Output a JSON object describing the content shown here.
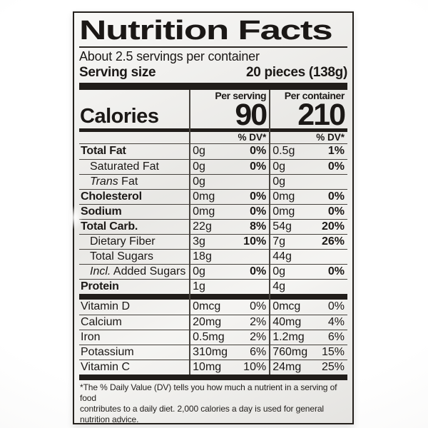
{
  "colors": {
    "label_bg": "#f1f0ed",
    "bar": "#211d1a",
    "text": "#1b1816",
    "hairline": "#46423d",
    "hairline_strong": "#2c2824"
  },
  "label": {
    "title": "Nutrition Facts",
    "servings_per_container": "About 2.5 servings per container",
    "serving_size_label": "Serving size",
    "serving_size_value": "20 pieces (138g)",
    "calories_label": "Calories",
    "per_serving_header": "Per serving",
    "per_container_header": "Per container",
    "calories_per_serving": "90",
    "calories_per_container": "210",
    "dv_header": "% DV*",
    "footnote_line1": "*The % Daily Value (DV) tells you how much a nutrient in a serving of food",
    "footnote_line2": "contributes to a daily diet. 2,000 calories a day is used for general nutrition advice."
  },
  "table": {
    "main_rows": [
      {
        "name": "Total Fat",
        "style": "bold",
        "amt1": "0g",
        "dv1": "0%",
        "amt2": "0.5g",
        "dv2": "1%"
      },
      {
        "name": "Saturated Fat",
        "style": "ind",
        "amt1": "0g",
        "dv1": "0%",
        "amt2": "0g",
        "dv2": "0%"
      },
      {
        "name": "Trans Fat",
        "style": "ind",
        "italic_prefix": "Trans",
        "amt1": "0g",
        "dv1": "",
        "amt2": "0g",
        "dv2": ""
      },
      {
        "name": "Cholesterol",
        "style": "bold",
        "amt1": "0mg",
        "dv1": "0%",
        "amt2": "0mg",
        "dv2": "0%"
      },
      {
        "name": "Sodium",
        "style": "bold",
        "amt1": "0mg",
        "dv1": "0%",
        "amt2": "0mg",
        "dv2": "0%"
      },
      {
        "name": "Total Carb.",
        "style": "bold",
        "amt1": "22g",
        "dv1": "8%",
        "amt2": "54g",
        "dv2": "20%"
      },
      {
        "name": "Dietary Fiber",
        "style": "ind",
        "amt1": "3g",
        "dv1": "10%",
        "amt2": "7g",
        "dv2": "26%"
      },
      {
        "name": "Total Sugars",
        "style": "ind",
        "amt1": "18g",
        "dv1": "",
        "amt2": "44g",
        "dv2": ""
      },
      {
        "name": "Incl. Added Sugars",
        "style": "ind",
        "italic_prefix": "Incl.",
        "amt1": "0g",
        "dv1": "0%",
        "amt2": "0g",
        "dv2": "0%"
      },
      {
        "name": "Protein",
        "style": "bold",
        "amt1": "1g",
        "dv1": "",
        "amt2": "4g",
        "dv2": ""
      }
    ],
    "vitamin_rows": [
      {
        "name": "Vitamin D",
        "amt1": "0mcg",
        "dv1": "0%",
        "amt2": "0mcg",
        "dv2": "0%"
      },
      {
        "name": "Calcium",
        "amt1": "20mg",
        "dv1": "2%",
        "amt2": "40mg",
        "dv2": "4%"
      },
      {
        "name": "Iron",
        "amt1": "0.5mg",
        "dv1": "2%",
        "amt2": "1.2mg",
        "dv2": "6%"
      },
      {
        "name": "Potassium",
        "amt1": "310mg",
        "dv1": "6%",
        "amt2": "760mg",
        "dv2": "15%"
      },
      {
        "name": "Vitamin C",
        "amt1": "10mg",
        "dv1": "10%",
        "amt2": "24mg",
        "dv2": "25%"
      }
    ]
  }
}
